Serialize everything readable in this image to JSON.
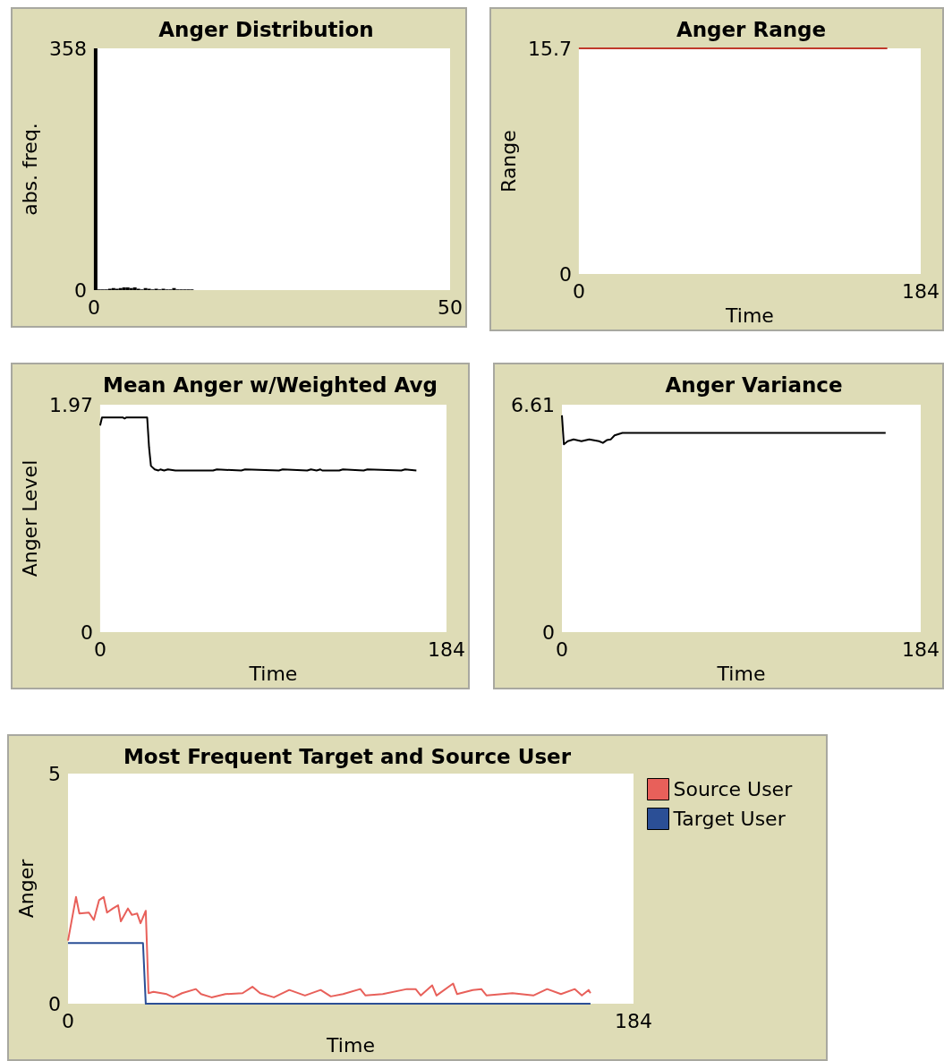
{
  "chart_data": [
    {
      "type": "histogram",
      "title": "Anger Distribution",
      "ylabel": "abs. freq.",
      "bins": [
        0,
        0.5,
        1,
        1.5,
        2,
        2.5,
        3,
        3.5,
        4,
        4.5,
        5,
        5.5,
        6,
        6.5,
        7,
        7.5,
        8,
        8.5,
        9,
        9.5,
        10,
        10.5,
        11,
        11.5,
        12,
        12.5,
        13,
        13.5,
        14
      ],
      "values": [
        358,
        1,
        1,
        1,
        2,
        3,
        2,
        3,
        4,
        4,
        3,
        4,
        2,
        1,
        3,
        2,
        1,
        2,
        1,
        2,
        1,
        1,
        3,
        1,
        1,
        1,
        1,
        1
      ],
      "color": "#000000",
      "xlim": [
        0,
        50
      ],
      "xticks": [
        0,
        50
      ],
      "ylim": [
        0,
        358
      ],
      "yticks": [
        0,
        358
      ],
      "grid": false
    },
    {
      "type": "line",
      "title": "Anger Range",
      "xlabel": "Time",
      "ylabel": "Range",
      "series": [
        {
          "color": "#c0392b",
          "x": [
            0,
            166
          ],
          "values": [
            15.7,
            15.7
          ]
        }
      ],
      "xlim": [
        0,
        184
      ],
      "xticks": [
        0,
        184
      ],
      "ylim": [
        0,
        15.7
      ],
      "yticks": [
        0,
        15.7
      ],
      "grid": false
    },
    {
      "type": "line",
      "title": "Mean Anger w/Weighted Avg",
      "xlabel": "Time",
      "ylabel": "Anger Level",
      "series": [
        {
          "color": "#000000",
          "x": [
            0,
            1,
            12,
            13,
            14,
            25,
            26,
            27,
            29,
            31,
            32,
            34,
            36,
            40,
            60,
            62,
            75,
            77,
            95,
            97,
            110,
            112,
            115,
            117,
            118,
            127,
            129,
            140,
            142,
            160,
            162,
            168
          ],
          "values": [
            1.79,
            1.86,
            1.86,
            1.85,
            1.86,
            1.86,
            1.6,
            1.44,
            1.41,
            1.4,
            1.41,
            1.4,
            1.41,
            1.4,
            1.4,
            1.41,
            1.4,
            1.41,
            1.4,
            1.41,
            1.4,
            1.41,
            1.4,
            1.41,
            1.4,
            1.4,
            1.41,
            1.4,
            1.41,
            1.4,
            1.41,
            1.4
          ]
        }
      ],
      "xlim": [
        0,
        184
      ],
      "xticks": [
        0,
        184
      ],
      "ylim": [
        0,
        1.97
      ],
      "yticks": [
        0,
        1.97
      ],
      "grid": false
    },
    {
      "type": "line",
      "title": "Anger Variance",
      "xlabel": "Time",
      "ylabel": null,
      "series": [
        {
          "color": "#000000",
          "x": [
            0,
            1,
            3,
            6,
            10,
            14,
            19,
            21,
            23,
            25,
            27,
            31,
            166
          ],
          "values": [
            6.3,
            5.46,
            5.55,
            5.6,
            5.55,
            5.6,
            5.55,
            5.5,
            5.58,
            5.6,
            5.72,
            5.79,
            5.79
          ]
        }
      ],
      "xlim": [
        0,
        184
      ],
      "xticks": [
        0,
        184
      ],
      "ylim": [
        0,
        6.61
      ],
      "yticks": [
        0,
        6.61
      ],
      "grid": false
    },
    {
      "type": "line",
      "title": "Most Frequent Target and Source User",
      "xlabel": "Time",
      "ylabel": "Anger",
      "legend": "top right",
      "series": [
        {
          "name": "Source User",
          "color": "#e8605a",
          "x": [
            0,
            2.6,
            3.7,
            6.8,
            8.4,
            10.1,
            11.6,
            12.7,
            14.6,
            16.3,
            17.2,
            19.5,
            20.8,
            22.5,
            23.6,
            25.3,
            26.2,
            27.8,
            32.1,
            34.3,
            37.1,
            41.6,
            43.3,
            46.7,
            51.2,
            56.8,
            60,
            62.5,
            67,
            72,
            77.1,
            82.2,
            85.5,
            89.5,
            95.1,
            96.8,
            102.4,
            110.3,
            113.1,
            114.8,
            118.5,
            119.9,
            125.3,
            126.6,
            131.7,
            134.5,
            136.2,
            144.6,
            151.4,
            155.9,
            160.4,
            164.9,
            167.2,
            169.4,
            170
          ],
          "values": [
            1.37,
            2.32,
            1.96,
            1.98,
            1.82,
            2.25,
            2.32,
            1.98,
            2.07,
            2.14,
            1.79,
            2.07,
            1.93,
            1.96,
            1.75,
            2.02,
            0.23,
            0.26,
            0.21,
            0.14,
            0.23,
            0.32,
            0.21,
            0.14,
            0.21,
            0.23,
            0.37,
            0.23,
            0.14,
            0.3,
            0.18,
            0.3,
            0.16,
            0.21,
            0.32,
            0.18,
            0.21,
            0.32,
            0.32,
            0.18,
            0.4,
            0.18,
            0.44,
            0.21,
            0.3,
            0.32,
            0.18,
            0.23,
            0.18,
            0.32,
            0.21,
            0.32,
            0.18,
            0.3,
            0.23
          ]
        },
        {
          "name": "Target User",
          "color": "#2b4f96",
          "x": [
            0,
            24.4,
            25.3,
            170
          ],
          "values": [
            1.32,
            1.32,
            0,
            0
          ]
        }
      ],
      "xlim": [
        0,
        184
      ],
      "xticks": [
        0,
        184
      ],
      "ylim": [
        0,
        5
      ],
      "yticks": [
        0,
        5
      ],
      "grid": false
    }
  ]
}
